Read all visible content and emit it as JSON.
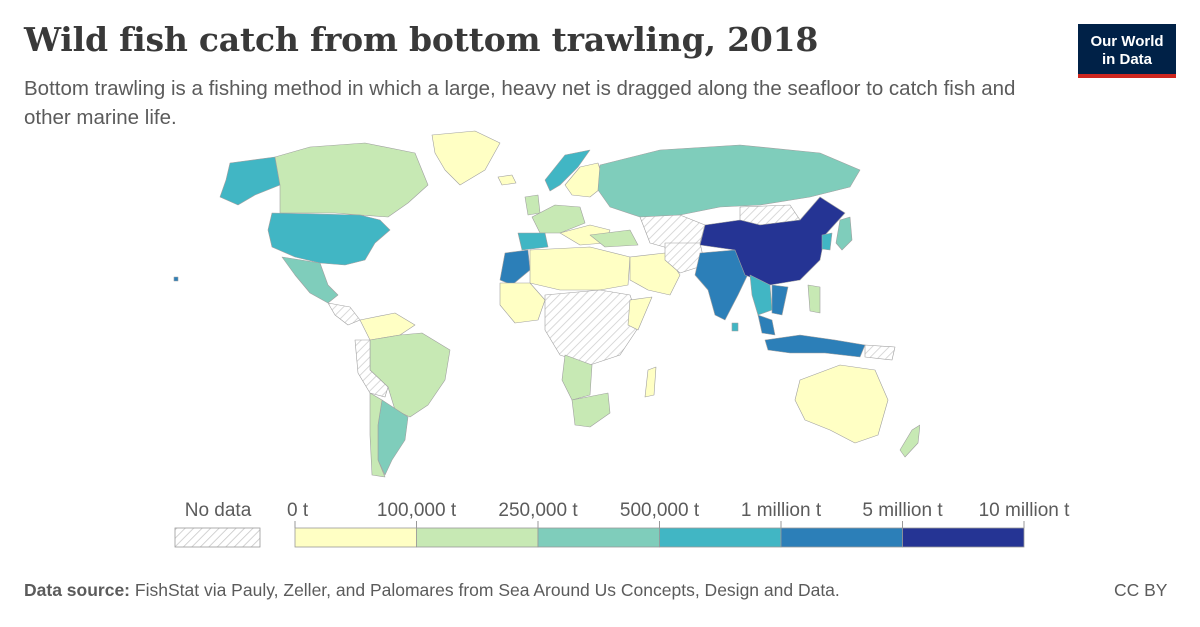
{
  "header": {
    "title": "Wild fish catch from bottom trawling, 2018",
    "subtitle": "Bottom trawling is a fishing method in which a large, heavy net is dragged along the seafloor to catch fish and other marine life."
  },
  "logo": {
    "line1": "Our World",
    "line2": "in Data",
    "bg_color": "#002147",
    "accent_color": "#ce261e"
  },
  "legend": {
    "no_data_label": "No data",
    "bins": [
      {
        "label": "0 t",
        "color": "#ffffc4"
      },
      {
        "label": "100,000 t",
        "color": "#c7e9b4"
      },
      {
        "label": "250,000 t",
        "color": "#7fcdbb"
      },
      {
        "label": "500,000 t",
        "color": "#41b6c4"
      },
      {
        "label": "1 million t",
        "color": "#2c7fb8"
      },
      {
        "label": "5 million t",
        "color": "#253494"
      }
    ],
    "end_label": "10 million t"
  },
  "footer": {
    "source_label": "Data source:",
    "source_text": "FishStat via Pauly, Zeller, and Palomares from Sea Around Us Concepts, Design and Data.",
    "license": "CC BY"
  }
}
